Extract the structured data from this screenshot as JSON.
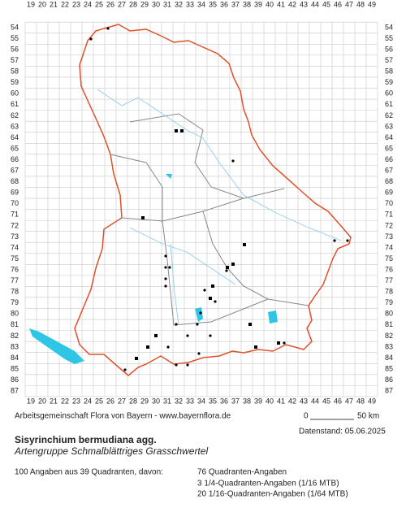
{
  "grid": {
    "columns": [
      19,
      20,
      21,
      22,
      23,
      24,
      25,
      26,
      27,
      28,
      29,
      30,
      31,
      32,
      33,
      34,
      35,
      36,
      37,
      38,
      39,
      40,
      41,
      42,
      43,
      44,
      45,
      46,
      47,
      48,
      49
    ],
    "rows": [
      54,
      55,
      56,
      57,
      58,
      59,
      60,
      61,
      62,
      63,
      64,
      65,
      66,
      67,
      68,
      69,
      70,
      71,
      72,
      73,
      74,
      75,
      76,
      77,
      78,
      79,
      80,
      81,
      82,
      83,
      84,
      85,
      86,
      87
    ]
  },
  "credit": "Arbeitsgemeinschaft Flora von Bayern - www.bayernflora.de",
  "scale": {
    "start": "0",
    "end": "50 km"
  },
  "date": "Datenstand: 05.06.2025",
  "title": "Sisyrinchium bermudiana agg.",
  "subtitle": "Artengruppe Schmalblättriges Grasschwertel",
  "summary": "100 Angaben aus 39 Quadranten, davon:",
  "breakdown": [
    "76 Quadranten-Angaben",
    "3 1/4-Quadranten-Angaben (1/16 MTB)",
    "20 1/16-Quadranten-Angaben (1/64 MTB)"
  ]
}
